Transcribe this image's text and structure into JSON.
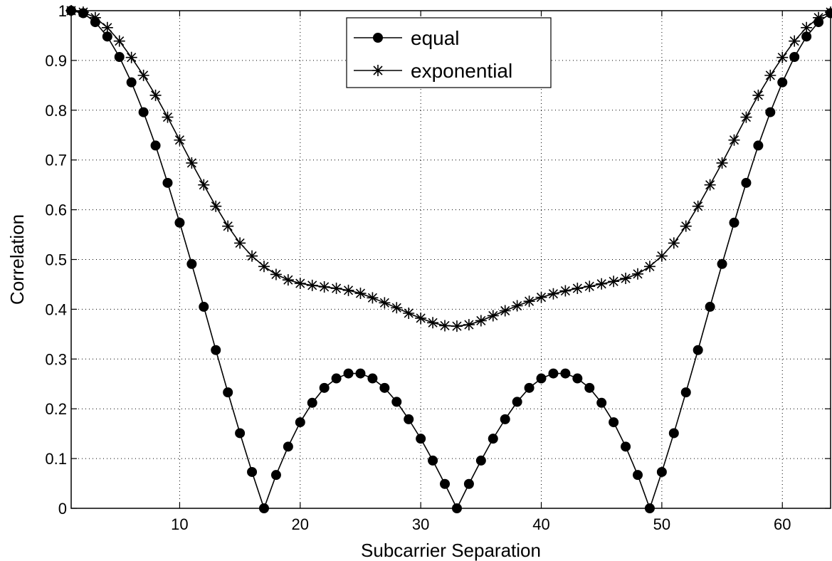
{
  "chart_data": {
    "type": "line",
    "xlabel": "Subcarrier Separation",
    "ylabel": "Correlation",
    "xlim": [
      1,
      64
    ],
    "ylim": [
      0,
      1
    ],
    "xticks": [
      10,
      20,
      30,
      40,
      50,
      60
    ],
    "yticks": [
      0,
      0.1,
      0.2,
      0.3,
      0.4,
      0.5,
      0.6,
      0.7,
      0.8,
      0.9,
      1
    ],
    "grid": true,
    "legend_position": "top-center",
    "x": [
      1,
      2,
      3,
      4,
      5,
      6,
      7,
      8,
      9,
      10,
      11,
      12,
      13,
      14,
      15,
      16,
      17,
      18,
      19,
      20,
      21,
      22,
      23,
      24,
      25,
      26,
      27,
      28,
      29,
      30,
      31,
      32,
      33,
      34,
      35,
      36,
      37,
      38,
      39,
      40,
      41,
      42,
      43,
      44,
      45,
      46,
      47,
      48,
      49,
      50,
      51,
      52,
      53,
      54,
      55,
      56,
      57,
      58,
      59,
      60,
      61,
      62,
      63,
      64
    ],
    "series": [
      {
        "name": "equal",
        "marker": "circle",
        "color": "#000000",
        "values": [
          1.0,
          0.995,
          0.977,
          0.948,
          0.907,
          0.856,
          0.796,
          0.729,
          0.654,
          0.574,
          0.491,
          0.405,
          0.318,
          0.233,
          0.151,
          0.073,
          0.0,
          0.067,
          0.124,
          0.173,
          0.212,
          0.242,
          0.261,
          0.271,
          0.271,
          0.261,
          0.242,
          0.214,
          0.179,
          0.14,
          0.096,
          0.049,
          0.0,
          0.049,
          0.096,
          0.14,
          0.179,
          0.214,
          0.242,
          0.261,
          0.271,
          0.271,
          0.261,
          0.242,
          0.212,
          0.173,
          0.124,
          0.067,
          0.0,
          0.073,
          0.151,
          0.233,
          0.318,
          0.405,
          0.491,
          0.574,
          0.654,
          0.729,
          0.796,
          0.856,
          0.907,
          0.948,
          0.977,
          0.995
        ]
      },
      {
        "name": "exponential",
        "marker": "asterisk",
        "color": "#000000",
        "values": [
          1.0,
          0.997,
          0.986,
          0.966,
          0.939,
          0.906,
          0.87,
          0.83,
          0.786,
          0.74,
          0.694,
          0.65,
          0.607,
          0.567,
          0.533,
          0.507,
          0.486,
          0.47,
          0.459,
          0.452,
          0.448,
          0.445,
          0.442,
          0.438,
          0.432,
          0.423,
          0.413,
          0.403,
          0.392,
          0.382,
          0.373,
          0.367,
          0.366,
          0.369,
          0.377,
          0.387,
          0.397,
          0.407,
          0.416,
          0.424,
          0.431,
          0.437,
          0.442,
          0.446,
          0.451,
          0.456,
          0.462,
          0.471,
          0.486,
          0.507,
          0.533,
          0.567,
          0.607,
          0.65,
          0.694,
          0.74,
          0.786,
          0.83,
          0.87,
          0.906,
          0.939,
          0.966,
          0.986,
          0.997
        ]
      }
    ]
  }
}
